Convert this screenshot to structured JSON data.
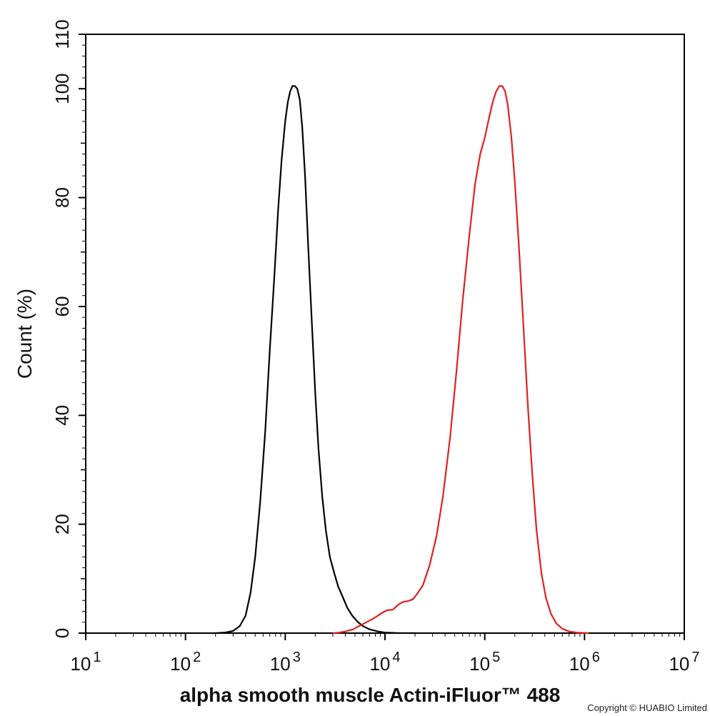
{
  "chart_data": {
    "type": "line",
    "title": "",
    "xlabel": "alpha smooth muscle Actin-iFluor™ 488",
    "ylabel": "Count  (%)",
    "x_scale": "log",
    "xlim": [
      10,
      10000000
    ],
    "ylim": [
      0,
      110
    ],
    "x_ticks": [
      10,
      100,
      1000,
      10000,
      100000,
      1000000,
      10000000
    ],
    "x_tick_labels": [
      {
        "base": "10",
        "exp": "1"
      },
      {
        "base": "10",
        "exp": "2"
      },
      {
        "base": "10",
        "exp": "3"
      },
      {
        "base": "10",
        "exp": "4"
      },
      {
        "base": "10",
        "exp": "5"
      },
      {
        "base": "10",
        "exp": "6"
      },
      {
        "base": "10",
        "exp": "7"
      }
    ],
    "y_ticks": [
      0,
      20,
      40,
      60,
      80,
      100,
      110
    ],
    "y_tick_labels": [
      "0",
      "20",
      "40",
      "60",
      "80",
      "100",
      "110"
    ],
    "grid": false,
    "legend": "none",
    "series": [
      {
        "color": "#000000",
        "points": [
          [
            200,
            0
          ],
          [
            250,
            0.1
          ],
          [
            300,
            0.4
          ],
          [
            350,
            1.3
          ],
          [
            400,
            3.2
          ],
          [
            450,
            7.5
          ],
          [
            500,
            14
          ],
          [
            560,
            24
          ],
          [
            630,
            37
          ],
          [
            700,
            52
          ],
          [
            780,
            66
          ],
          [
            850,
            78
          ],
          [
            920,
            87
          ],
          [
            1000,
            94
          ],
          [
            1060,
            97.5
          ],
          [
            1120,
            99.5
          ],
          [
            1180,
            100.5
          ],
          [
            1250,
            100.5
          ],
          [
            1320,
            100
          ],
          [
            1400,
            98
          ],
          [
            1480,
            93
          ],
          [
            1580,
            84
          ],
          [
            1700,
            71
          ],
          [
            1850,
            57
          ],
          [
            2000,
            44
          ],
          [
            2150,
            34
          ],
          [
            2350,
            25
          ],
          [
            2550,
            19
          ],
          [
            2800,
            14
          ],
          [
            3100,
            11
          ],
          [
            3400,
            8.5
          ],
          [
            3800,
            6.5
          ],
          [
            4200,
            4.6
          ],
          [
            4700,
            3.2
          ],
          [
            5300,
            2.1
          ],
          [
            6000,
            1.3
          ],
          [
            7000,
            0.7
          ],
          [
            8500,
            0.3
          ],
          [
            10000,
            0.1
          ],
          [
            13000,
            0.02
          ],
          [
            20000,
            0
          ]
        ]
      },
      {
        "color": "#e02020",
        "points": [
          [
            3000,
            0
          ],
          [
            3500,
            0.1
          ],
          [
            4000,
            0.3
          ],
          [
            4800,
            0.7
          ],
          [
            5500,
            1.3
          ],
          [
            6500,
            2
          ],
          [
            7500,
            2.6
          ],
          [
            8500,
            3.2
          ],
          [
            9500,
            3.8
          ],
          [
            10500,
            4.2
          ],
          [
            12000,
            4.3
          ],
          [
            13500,
            5.2
          ],
          [
            15000,
            5.7
          ],
          [
            17000,
            5.9
          ],
          [
            19000,
            6.2
          ],
          [
            21000,
            7.2
          ],
          [
            24000,
            8.8
          ],
          [
            28000,
            12.5
          ],
          [
            33000,
            18
          ],
          [
            38000,
            25
          ],
          [
            45000,
            36
          ],
          [
            52000,
            48
          ],
          [
            60000,
            61
          ],
          [
            70000,
            73
          ],
          [
            80000,
            82.5
          ],
          [
            90000,
            88
          ],
          [
            100000,
            91
          ],
          [
            110000,
            94.5
          ],
          [
            120000,
            97.5
          ],
          [
            130000,
            99.5
          ],
          [
            140000,
            100.5
          ],
          [
            150000,
            100.5
          ],
          [
            160000,
            99.5
          ],
          [
            170000,
            97
          ],
          [
            185000,
            91
          ],
          [
            200000,
            83
          ],
          [
            220000,
            71
          ],
          [
            245000,
            56
          ],
          [
            270000,
            42
          ],
          [
            300000,
            29
          ],
          [
            330000,
            19
          ],
          [
            370000,
            11
          ],
          [
            410000,
            6.5
          ],
          [
            460000,
            3.6
          ],
          [
            520000,
            1.8
          ],
          [
            600000,
            0.8
          ],
          [
            700000,
            0.3
          ],
          [
            850000,
            0.08
          ],
          [
            1100000,
            0
          ]
        ]
      }
    ]
  },
  "footer": {
    "copyright": "Copyright © HUABIO Limited"
  }
}
